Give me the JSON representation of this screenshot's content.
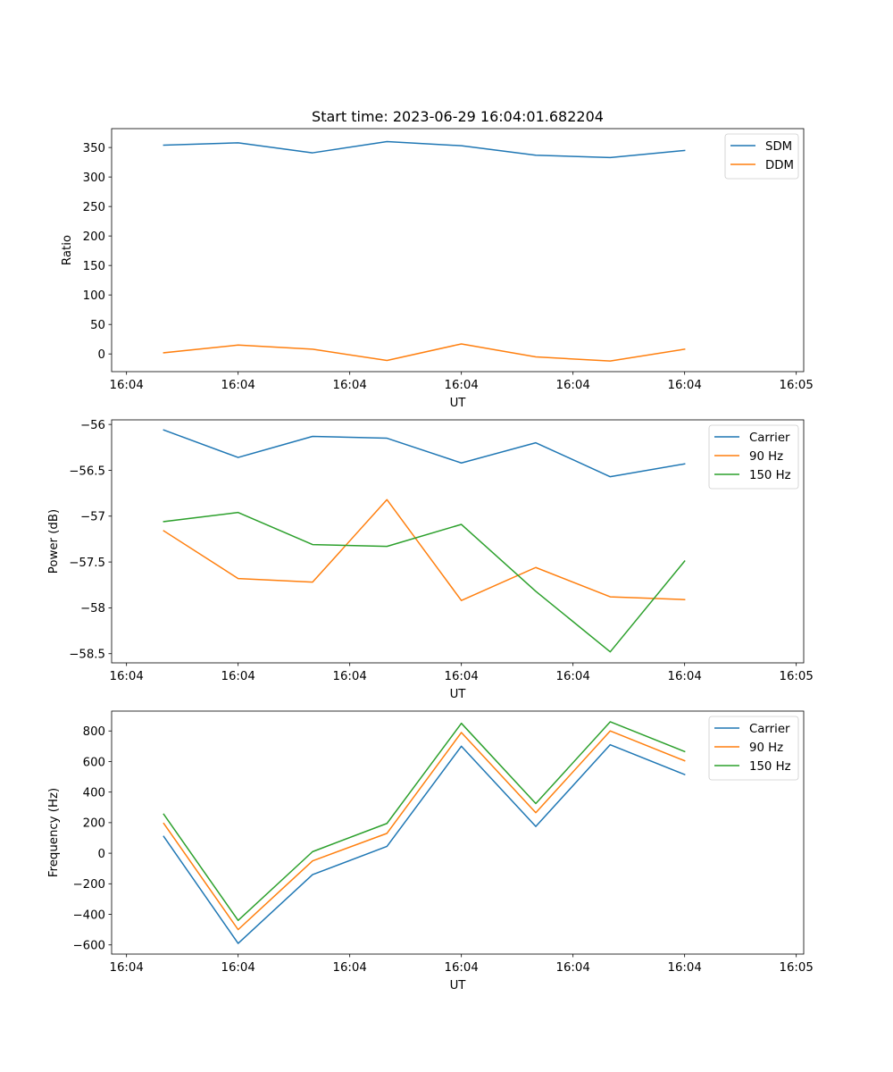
{
  "figure_title": "Start time: 2023-06-29 16:04:01.682204",
  "x_tick_labels": [
    "16:04",
    "16:04",
    "16:04",
    "16:04",
    "16:04",
    "16:04",
    "16:05"
  ],
  "chart_data": [
    {
      "type": "line",
      "title": "Start time: 2023-06-29 16:04:01.682204",
      "xlabel": "UT",
      "ylabel": "Ratio",
      "ylim": [
        -30,
        382
      ],
      "yticks": [
        0,
        50,
        100,
        150,
        200,
        250,
        300,
        350
      ],
      "x": [
        1,
        2,
        3,
        4,
        5,
        6,
        7,
        8
      ],
      "legend_position": "top-right",
      "grid": false,
      "series": [
        {
          "name": "SDM",
          "color": "#1f77b4",
          "values": [
            354,
            358,
            341,
            360,
            353,
            337,
            333,
            345
          ]
        },
        {
          "name": "DDM",
          "color": "#ff7f0e",
          "values": [
            2,
            15,
            8,
            -11,
            17,
            -5,
            -12,
            8
          ]
        }
      ]
    },
    {
      "type": "line",
      "title": "",
      "xlabel": "UT",
      "ylabel": "Power (dB)",
      "ylim": [
        -58.6,
        -55.95
      ],
      "yticks": [
        -58.5,
        -58.0,
        -57.5,
        -57.0,
        -56.5,
        -56.0
      ],
      "x": [
        1,
        2,
        3,
        4,
        5,
        6,
        7,
        8
      ],
      "legend_position": "top-right",
      "grid": false,
      "series": [
        {
          "name": "Carrier",
          "color": "#1f77b4",
          "values": [
            -56.06,
            -56.36,
            -56.13,
            -56.15,
            -56.42,
            -56.2,
            -56.57,
            -56.43
          ]
        },
        {
          "name": "90 Hz",
          "color": "#ff7f0e",
          "values": [
            -57.16,
            -57.68,
            -57.72,
            -56.82,
            -57.92,
            -57.56,
            -57.88,
            -57.91
          ]
        },
        {
          "name": "150 Hz",
          "color": "#2ca02c",
          "values": [
            -57.06,
            -56.96,
            -57.31,
            -57.33,
            -57.09,
            -57.82,
            -58.48,
            -57.49
          ]
        }
      ]
    },
    {
      "type": "line",
      "title": "",
      "xlabel": "UT",
      "ylabel": "Frequency (Hz)",
      "ylim": [
        -660,
        930
      ],
      "yticks": [
        -600,
        -400,
        -200,
        0,
        200,
        400,
        600,
        800
      ],
      "x": [
        1,
        2,
        3,
        4,
        5,
        6,
        7,
        8
      ],
      "legend_position": "top-right",
      "grid": false,
      "series": [
        {
          "name": "Carrier",
          "color": "#1f77b4",
          "values": [
            110,
            -590,
            -140,
            45,
            700,
            175,
            710,
            515
          ]
        },
        {
          "name": "90 Hz",
          "color": "#ff7f0e",
          "values": [
            195,
            -500,
            -50,
            130,
            790,
            265,
            800,
            605
          ]
        },
        {
          "name": "150 Hz",
          "color": "#2ca02c",
          "values": [
            255,
            -440,
            10,
            195,
            850,
            325,
            860,
            665
          ]
        }
      ]
    }
  ]
}
